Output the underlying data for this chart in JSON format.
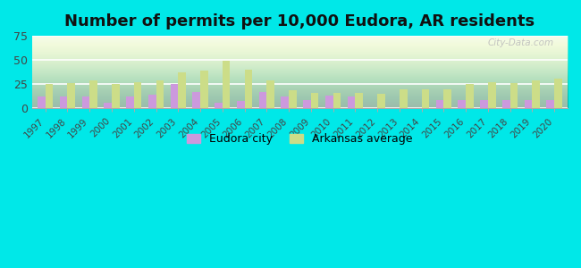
{
  "title": "Number of permits per 10,000 Eudora, AR residents",
  "years": [
    1997,
    1998,
    1999,
    2000,
    2001,
    2002,
    2003,
    2004,
    2005,
    2006,
    2007,
    2008,
    2009,
    2010,
    2011,
    2012,
    2013,
    2014,
    2015,
    2016,
    2017,
    2018,
    2019,
    2020
  ],
  "eudora": [
    12,
    12,
    12,
    6,
    12,
    14,
    25,
    17,
    6,
    8,
    17,
    12,
    9,
    13,
    12,
    0,
    0,
    0,
    9,
    9,
    9,
    9,
    9,
    9
  ],
  "arkansas": [
    25,
    26,
    29,
    25,
    27,
    29,
    37,
    39,
    49,
    40,
    29,
    19,
    16,
    16,
    16,
    15,
    20,
    20,
    20,
    25,
    27,
    26,
    29,
    31
  ],
  "eudora_color": "#cc99dd",
  "arkansas_color": "#ccdd88",
  "background_color": "#00e8e8",
  "ylim": [
    0,
    75
  ],
  "yticks": [
    0,
    25,
    50,
    75
  ],
  "title_fontsize": 13,
  "bar_width": 0.35,
  "legend_eudora": "Eudora city",
  "legend_arkansas": "Arkansas average",
  "watermark": "City-Data.com"
}
